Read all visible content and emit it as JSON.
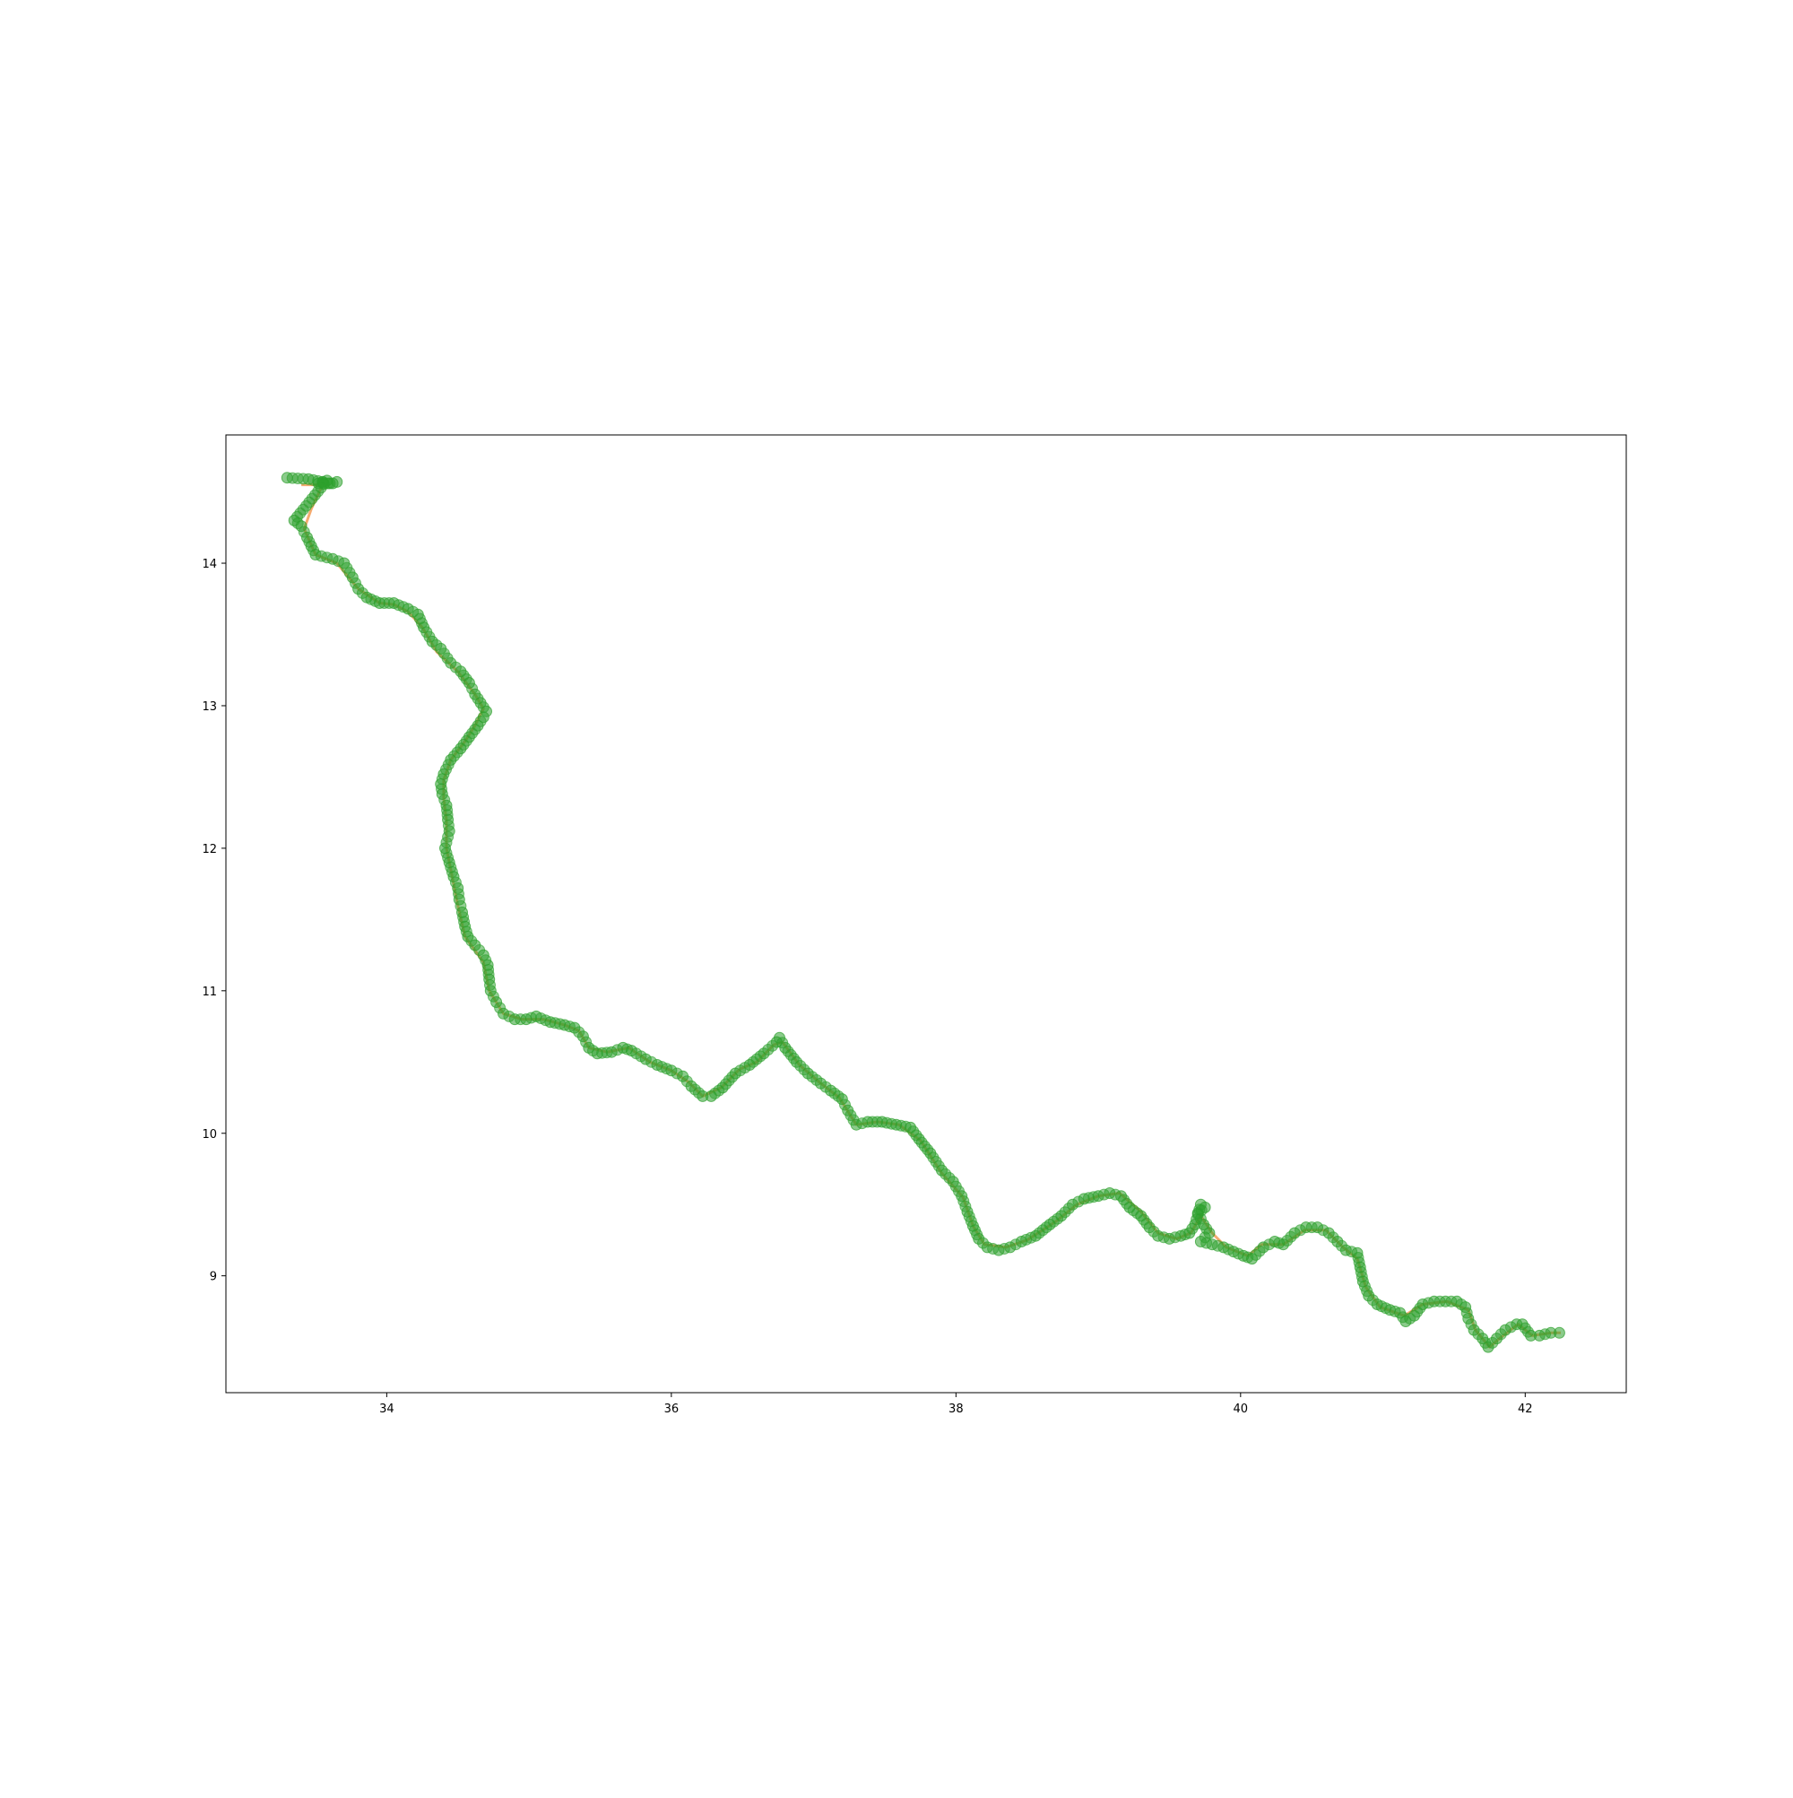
{
  "chart_data": {
    "type": "scatter",
    "title": "",
    "xlabel": "",
    "ylabel": "",
    "xlim": [
      32.87,
      42.71
    ],
    "ylim": [
      8.18,
      14.9
    ],
    "xticks": [
      34,
      36,
      38,
      40,
      42
    ],
    "yticks": [
      9,
      10,
      11,
      12,
      13,
      14
    ],
    "xtick_labels": [
      "34",
      "36",
      "38",
      "40",
      "42"
    ],
    "ytick_labels": [
      "9",
      "10",
      "11",
      "12",
      "13",
      "14"
    ],
    "grid": false,
    "legend": "none",
    "series": [
      {
        "kind": "line",
        "color": "#f4a261",
        "description_hidden": true,
        "points": [
          [
            33.4,
            14.55
          ],
          [
            33.55,
            14.55
          ],
          [
            33.47,
            14.38
          ],
          [
            33.42,
            14.24
          ],
          [
            33.5,
            14.06
          ],
          [
            33.65,
            14.0
          ],
          [
            33.8,
            13.82
          ],
          [
            33.95,
            13.72
          ],
          [
            34.05,
            13.71
          ],
          [
            34.15,
            13.66
          ],
          [
            34.25,
            13.55
          ],
          [
            34.35,
            13.38
          ],
          [
            34.5,
            13.24
          ],
          [
            34.62,
            13.08
          ],
          [
            34.68,
            12.98
          ],
          [
            34.62,
            12.86
          ],
          [
            34.55,
            12.75
          ],
          [
            34.45,
            12.62
          ],
          [
            34.4,
            12.48
          ],
          [
            34.4,
            12.35
          ],
          [
            34.42,
            12.2
          ],
          [
            34.42,
            12.0
          ],
          [
            34.46,
            11.8
          ],
          [
            34.5,
            11.6
          ],
          [
            34.55,
            11.38
          ],
          [
            34.68,
            11.2
          ],
          [
            34.72,
            11.0
          ],
          [
            34.82,
            10.84
          ],
          [
            34.95,
            10.8
          ],
          [
            35.1,
            10.8
          ],
          [
            35.25,
            10.76
          ],
          [
            35.35,
            10.72
          ],
          [
            35.42,
            10.6
          ],
          [
            35.55,
            10.57
          ],
          [
            35.7,
            10.6
          ],
          [
            35.85,
            10.5
          ],
          [
            36.0,
            10.44
          ],
          [
            36.12,
            10.36
          ],
          [
            36.22,
            10.26
          ],
          [
            36.35,
            10.32
          ],
          [
            36.48,
            10.45
          ],
          [
            36.6,
            10.5
          ],
          [
            36.72,
            10.62
          ],
          [
            36.78,
            10.64
          ],
          [
            36.9,
            10.48
          ],
          [
            37.05,
            10.35
          ],
          [
            37.18,
            10.25
          ],
          [
            37.3,
            10.06
          ],
          [
            37.45,
            10.08
          ],
          [
            37.6,
            10.06
          ],
          [
            37.75,
            9.95
          ],
          [
            37.9,
            9.72
          ],
          [
            38.05,
            9.55
          ],
          [
            38.12,
            9.35
          ],
          [
            38.2,
            9.22
          ],
          [
            38.35,
            9.2
          ],
          [
            38.5,
            9.25
          ],
          [
            38.7,
            9.38
          ],
          [
            38.85,
            9.5
          ],
          [
            39.0,
            9.56
          ],
          [
            39.15,
            9.58
          ],
          [
            39.3,
            9.45
          ],
          [
            39.42,
            9.3
          ],
          [
            39.55,
            9.26
          ],
          [
            39.65,
            9.3
          ],
          [
            39.72,
            9.42
          ],
          [
            39.8,
            9.3
          ],
          [
            39.9,
            9.2
          ],
          [
            40.05,
            9.14
          ],
          [
            40.15,
            9.22
          ],
          [
            40.3,
            9.22
          ],
          [
            40.45,
            9.32
          ],
          [
            40.6,
            9.32
          ],
          [
            40.72,
            9.2
          ],
          [
            40.82,
            9.12
          ],
          [
            40.88,
            8.92
          ],
          [
            40.98,
            8.78
          ],
          [
            41.15,
            8.72
          ],
          [
            41.28,
            8.8
          ],
          [
            41.45,
            8.82
          ],
          [
            41.6,
            8.76
          ],
          [
            41.65,
            8.62
          ],
          [
            41.75,
            8.5
          ],
          [
            41.82,
            8.56
          ],
          [
            41.95,
            8.66
          ],
          [
            42.05,
            8.58
          ],
          [
            42.18,
            8.6
          ],
          [
            42.25,
            8.6
          ]
        ]
      },
      {
        "kind": "scatter",
        "color": "#2ca02c",
        "marker_radius_data_note": "",
        "points": [
          [
            33.3,
            14.6
          ],
          [
            33.45,
            14.59
          ],
          [
            33.55,
            14.57
          ],
          [
            33.6,
            14.56
          ],
          [
            33.65,
            14.57
          ],
          [
            33.62,
            14.56
          ],
          [
            33.52,
            14.56
          ],
          [
            33.58,
            14.58
          ],
          [
            33.35,
            14.3
          ],
          [
            33.4,
            14.26
          ],
          [
            33.44,
            14.18
          ],
          [
            33.47,
            14.12
          ],
          [
            33.5,
            14.06
          ],
          [
            33.62,
            14.03
          ],
          [
            33.7,
            14.0
          ],
          [
            33.76,
            13.9
          ],
          [
            33.8,
            13.82
          ],
          [
            33.86,
            13.76
          ],
          [
            33.95,
            13.72
          ],
          [
            34.05,
            13.72
          ],
          [
            34.15,
            13.68
          ],
          [
            34.22,
            13.64
          ],
          [
            34.26,
            13.55
          ],
          [
            34.32,
            13.45
          ],
          [
            34.38,
            13.4
          ],
          [
            34.45,
            13.3
          ],
          [
            34.52,
            13.24
          ],
          [
            34.58,
            13.16
          ],
          [
            34.62,
            13.08
          ],
          [
            34.66,
            13.02
          ],
          [
            34.7,
            12.96
          ],
          [
            34.68,
            12.92
          ],
          [
            34.64,
            12.86
          ],
          [
            34.58,
            12.78
          ],
          [
            34.52,
            12.7
          ],
          [
            34.45,
            12.62
          ],
          [
            34.4,
            12.52
          ],
          [
            34.38,
            12.45
          ],
          [
            34.39,
            12.38
          ],
          [
            34.42,
            12.3
          ],
          [
            34.43,
            12.2
          ],
          [
            34.44,
            12.12
          ],
          [
            34.41,
            12.0
          ],
          [
            34.44,
            11.9
          ],
          [
            34.47,
            11.8
          ],
          [
            34.5,
            11.72
          ],
          [
            34.51,
            11.64
          ],
          [
            34.53,
            11.55
          ],
          [
            34.55,
            11.45
          ],
          [
            34.57,
            11.38
          ],
          [
            34.62,
            11.32
          ],
          [
            34.68,
            11.25
          ],
          [
            34.71,
            11.18
          ],
          [
            34.72,
            11.08
          ],
          [
            34.73,
            11.0
          ],
          [
            34.77,
            10.92
          ],
          [
            34.82,
            10.84
          ],
          [
            34.9,
            10.8
          ],
          [
            34.98,
            10.8
          ],
          [
            35.05,
            10.82
          ],
          [
            35.15,
            10.78
          ],
          [
            35.25,
            10.76
          ],
          [
            35.32,
            10.74
          ],
          [
            35.38,
            10.68
          ],
          [
            35.42,
            10.6
          ],
          [
            35.48,
            10.56
          ],
          [
            35.58,
            10.57
          ],
          [
            35.66,
            10.6
          ],
          [
            35.72,
            10.58
          ],
          [
            35.82,
            10.52
          ],
          [
            35.9,
            10.48
          ],
          [
            36.0,
            10.44
          ],
          [
            36.08,
            10.4
          ],
          [
            36.14,
            10.33
          ],
          [
            36.22,
            10.26
          ],
          [
            36.28,
            10.26
          ],
          [
            36.36,
            10.32
          ],
          [
            36.45,
            10.42
          ],
          [
            36.55,
            10.48
          ],
          [
            36.65,
            10.56
          ],
          [
            36.74,
            10.64
          ],
          [
            36.76,
            10.67
          ],
          [
            36.8,
            10.6
          ],
          [
            36.88,
            10.5
          ],
          [
            36.96,
            10.42
          ],
          [
            37.05,
            10.35
          ],
          [
            37.12,
            10.3
          ],
          [
            37.2,
            10.24
          ],
          [
            37.24,
            10.16
          ],
          [
            37.3,
            10.06
          ],
          [
            37.38,
            10.08
          ],
          [
            37.48,
            10.08
          ],
          [
            37.58,
            10.06
          ],
          [
            37.68,
            10.04
          ],
          [
            37.74,
            9.96
          ],
          [
            37.82,
            9.86
          ],
          [
            37.9,
            9.74
          ],
          [
            37.98,
            9.66
          ],
          [
            38.04,
            9.56
          ],
          [
            38.08,
            9.45
          ],
          [
            38.12,
            9.35
          ],
          [
            38.16,
            9.26
          ],
          [
            38.22,
            9.2
          ],
          [
            38.3,
            9.18
          ],
          [
            38.38,
            9.2
          ],
          [
            38.46,
            9.24
          ],
          [
            38.56,
            9.28
          ],
          [
            38.66,
            9.36
          ],
          [
            38.74,
            9.42
          ],
          [
            38.82,
            9.5
          ],
          [
            38.9,
            9.54
          ],
          [
            39.0,
            9.56
          ],
          [
            39.08,
            9.58
          ],
          [
            39.16,
            9.56
          ],
          [
            39.22,
            9.48
          ],
          [
            39.3,
            9.42
          ],
          [
            39.36,
            9.34
          ],
          [
            39.42,
            9.28
          ],
          [
            39.5,
            9.26
          ],
          [
            39.58,
            9.28
          ],
          [
            39.64,
            9.3
          ],
          [
            39.68,
            9.36
          ],
          [
            39.72,
            9.5
          ],
          [
            39.75,
            9.48
          ],
          [
            39.7,
            9.44
          ],
          [
            39.74,
            9.36
          ],
          [
            39.78,
            9.3
          ],
          [
            39.72,
            9.24
          ],
          [
            39.8,
            9.22
          ],
          [
            39.88,
            9.2
          ],
          [
            39.95,
            9.17
          ],
          [
            40.02,
            9.14
          ],
          [
            40.08,
            9.12
          ],
          [
            40.16,
            9.2
          ],
          [
            40.24,
            9.24
          ],
          [
            40.3,
            9.22
          ],
          [
            40.38,
            9.3
          ],
          [
            40.46,
            9.34
          ],
          [
            40.54,
            9.34
          ],
          [
            40.62,
            9.3
          ],
          [
            40.68,
            9.24
          ],
          [
            40.74,
            9.18
          ],
          [
            40.82,
            9.16
          ],
          [
            40.84,
            9.06
          ],
          [
            40.86,
            8.96
          ],
          [
            40.9,
            8.86
          ],
          [
            40.96,
            8.8
          ],
          [
            41.05,
            8.76
          ],
          [
            41.12,
            8.74
          ],
          [
            41.16,
            8.68
          ],
          [
            41.22,
            8.72
          ],
          [
            41.28,
            8.8
          ],
          [
            41.36,
            8.82
          ],
          [
            41.44,
            8.82
          ],
          [
            41.52,
            8.82
          ],
          [
            41.58,
            8.78
          ],
          [
            41.6,
            8.7
          ],
          [
            41.64,
            8.62
          ],
          [
            41.7,
            8.56
          ],
          [
            41.74,
            8.5
          ],
          [
            41.8,
            8.56
          ],
          [
            41.86,
            8.62
          ],
          [
            41.94,
            8.66
          ],
          [
            41.98,
            8.66
          ],
          [
            42.04,
            8.58
          ],
          [
            42.1,
            8.58
          ],
          [
            42.18,
            8.6
          ],
          [
            42.24,
            8.6
          ]
        ]
      }
    ]
  }
}
